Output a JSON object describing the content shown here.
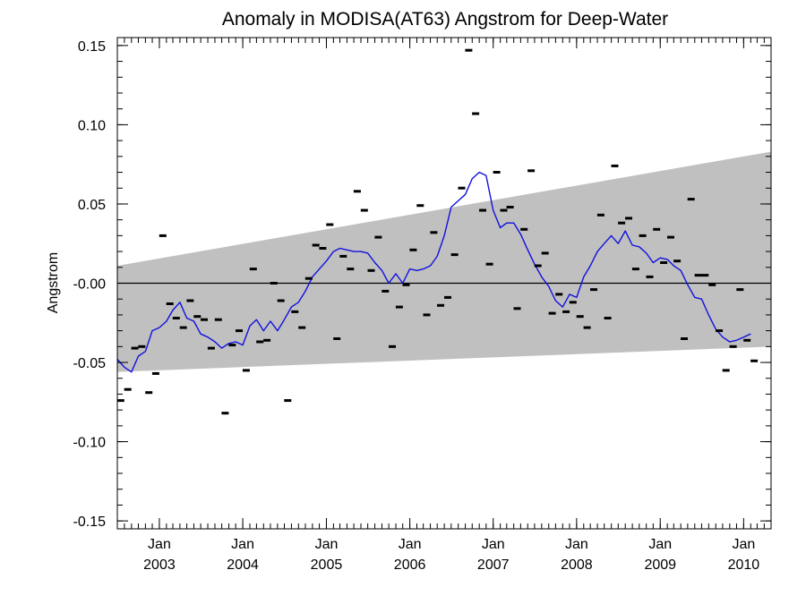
{
  "chart_data": {
    "type": "line",
    "title": "Anomaly in MODISA(AT63) Angstrom for Deep-Water",
    "xlabel": "",
    "ylabel": "Angstrom",
    "x_range": [
      "2002-07-01",
      "2010-05-01"
    ],
    "ylim": [
      -0.155,
      0.155
    ],
    "y_ticks": [
      {
        "value": 0.15,
        "label": "0.15"
      },
      {
        "value": 0.1,
        "label": "0.10"
      },
      {
        "value": 0.05,
        "label": "0.05"
      },
      {
        "value": 0.0,
        "label": "-0.00"
      },
      {
        "value": -0.05,
        "label": "-0.05"
      },
      {
        "value": -0.1,
        "label": "-0.10"
      },
      {
        "value": -0.15,
        "label": "-0.15"
      }
    ],
    "x_ticks": [
      {
        "date": "2003-01-01",
        "month": "Jan",
        "year": "2003"
      },
      {
        "date": "2004-01-01",
        "month": "Jan",
        "year": "2004"
      },
      {
        "date": "2005-01-01",
        "month": "Jan",
        "year": "2005"
      },
      {
        "date": "2006-01-01",
        "month": "Jan",
        "year": "2006"
      },
      {
        "date": "2007-01-01",
        "month": "Jan",
        "year": "2007"
      },
      {
        "date": "2008-01-01",
        "month": "Jan",
        "year": "2008"
      },
      {
        "date": "2009-01-01",
        "month": "Jan",
        "year": "2009"
      },
      {
        "date": "2010-01-01",
        "month": "Jan",
        "year": "2010"
      }
    ],
    "zero_line": 0.0,
    "grid": false,
    "band": {
      "color": "#c0c0c0",
      "upper": [
        [
          "2002-07-01",
          0.011
        ],
        [
          "2010-05-01",
          0.083
        ]
      ],
      "lower": [
        [
          "2002-07-01",
          -0.056
        ],
        [
          "2010-05-01",
          -0.04
        ]
      ]
    },
    "series": [
      {
        "type": "scatter",
        "marker": "dash",
        "color": "#000000",
        "points": [
          [
            "2002-07-16",
            -0.074
          ],
          [
            "2002-08-16",
            -0.067
          ],
          [
            "2002-09-16",
            -0.041
          ],
          [
            "2002-10-16",
            -0.04
          ],
          [
            "2002-11-16",
            -0.069
          ],
          [
            "2002-12-16",
            -0.057
          ],
          [
            "2003-01-16",
            0.03
          ],
          [
            "2003-02-16",
            -0.013
          ],
          [
            "2003-03-16",
            -0.022
          ],
          [
            "2003-04-16",
            -0.028
          ],
          [
            "2003-05-16",
            -0.011
          ],
          [
            "2003-06-16",
            -0.021
          ],
          [
            "2003-07-16",
            -0.023
          ],
          [
            "2003-08-16",
            -0.041
          ],
          [
            "2003-09-16",
            -0.023
          ],
          [
            "2003-10-16",
            -0.082
          ],
          [
            "2003-11-16",
            -0.039
          ],
          [
            "2003-12-16",
            -0.03
          ],
          [
            "2004-01-16",
            -0.055
          ],
          [
            "2004-02-16",
            0.009
          ],
          [
            "2004-03-16",
            -0.037
          ],
          [
            "2004-04-16",
            -0.036
          ],
          [
            "2004-05-16",
            0.0
          ],
          [
            "2004-06-16",
            -0.011
          ],
          [
            "2004-07-16",
            -0.074
          ],
          [
            "2004-08-16",
            -0.018
          ],
          [
            "2004-09-16",
            -0.028
          ],
          [
            "2004-10-16",
            0.003
          ],
          [
            "2004-11-16",
            0.024
          ],
          [
            "2004-12-16",
            0.022
          ],
          [
            "2005-01-16",
            0.037
          ],
          [
            "2005-02-16",
            -0.035
          ],
          [
            "2005-03-16",
            0.017
          ],
          [
            "2005-04-16",
            0.009
          ],
          [
            "2005-05-16",
            0.058
          ],
          [
            "2005-06-16",
            0.046
          ],
          [
            "2005-07-16",
            0.008
          ],
          [
            "2005-08-16",
            0.029
          ],
          [
            "2005-09-16",
            -0.005
          ],
          [
            "2005-10-16",
            -0.04
          ],
          [
            "2005-11-16",
            -0.015
          ],
          [
            "2005-12-16",
            -0.001
          ],
          [
            "2006-01-16",
            0.021
          ],
          [
            "2006-02-16",
            0.049
          ],
          [
            "2006-03-16",
            -0.02
          ],
          [
            "2006-04-16",
            0.032
          ],
          [
            "2006-05-16",
            -0.014
          ],
          [
            "2006-06-16",
            -0.009
          ],
          [
            "2006-07-16",
            0.018
          ],
          [
            "2006-08-16",
            0.06
          ],
          [
            "2006-09-16",
            0.147
          ],
          [
            "2006-10-16",
            0.107
          ],
          [
            "2006-11-16",
            0.046
          ],
          [
            "2006-12-16",
            0.012
          ],
          [
            "2007-01-16",
            0.07
          ],
          [
            "2007-02-16",
            0.046
          ],
          [
            "2007-03-16",
            0.048
          ],
          [
            "2007-04-16",
            -0.016
          ],
          [
            "2007-05-16",
            0.034
          ],
          [
            "2007-06-16",
            0.071
          ],
          [
            "2007-07-16",
            0.011
          ],
          [
            "2007-08-16",
            0.019
          ],
          [
            "2007-09-16",
            -0.019
          ],
          [
            "2007-10-16",
            -0.007
          ],
          [
            "2007-11-16",
            -0.018
          ],
          [
            "2007-12-16",
            -0.012
          ],
          [
            "2008-01-16",
            -0.021
          ],
          [
            "2008-02-16",
            -0.028
          ],
          [
            "2008-03-16",
            -0.004
          ],
          [
            "2008-04-16",
            0.043
          ],
          [
            "2008-05-16",
            -0.022
          ],
          [
            "2008-06-16",
            0.074
          ],
          [
            "2008-07-16",
            0.038
          ],
          [
            "2008-08-16",
            0.041
          ],
          [
            "2008-09-16",
            0.009
          ],
          [
            "2008-10-16",
            0.03
          ],
          [
            "2008-11-16",
            0.004
          ],
          [
            "2008-12-16",
            0.034
          ],
          [
            "2009-01-16",
            0.013
          ],
          [
            "2009-02-16",
            0.029
          ],
          [
            "2009-03-16",
            0.014
          ],
          [
            "2009-04-16",
            -0.035
          ],
          [
            "2009-05-16",
            0.053
          ],
          [
            "2009-06-16",
            0.005
          ],
          [
            "2009-07-16",
            0.005
          ],
          [
            "2009-08-16",
            -0.001
          ],
          [
            "2009-09-16",
            -0.03
          ],
          [
            "2009-10-16",
            -0.055
          ],
          [
            "2009-11-16",
            -0.04
          ],
          [
            "2009-12-16",
            -0.004
          ],
          [
            "2010-01-16",
            -0.036
          ],
          [
            "2010-02-16",
            -0.049
          ]
        ]
      },
      {
        "type": "line",
        "color": "#1010e0",
        "points": [
          [
            "2002-07-01",
            -0.048
          ],
          [
            "2002-08-01",
            -0.053
          ],
          [
            "2002-09-01",
            -0.056
          ],
          [
            "2002-10-01",
            -0.046
          ],
          [
            "2002-11-01",
            -0.043
          ],
          [
            "2002-12-01",
            -0.03
          ],
          [
            "2003-01-01",
            -0.028
          ],
          [
            "2003-02-01",
            -0.024
          ],
          [
            "2003-03-01",
            -0.017
          ],
          [
            "2003-04-01",
            -0.012
          ],
          [
            "2003-05-01",
            -0.022
          ],
          [
            "2003-06-01",
            -0.024
          ],
          [
            "2003-07-01",
            -0.032
          ],
          [
            "2003-08-01",
            -0.034
          ],
          [
            "2003-09-01",
            -0.037
          ],
          [
            "2003-10-01",
            -0.041
          ],
          [
            "2003-11-01",
            -0.038
          ],
          [
            "2003-12-01",
            -0.037
          ],
          [
            "2004-01-01",
            -0.039
          ],
          [
            "2004-02-01",
            -0.027
          ],
          [
            "2004-03-01",
            -0.023
          ],
          [
            "2004-04-01",
            -0.03
          ],
          [
            "2004-05-01",
            -0.024
          ],
          [
            "2004-06-01",
            -0.03
          ],
          [
            "2004-07-01",
            -0.023
          ],
          [
            "2004-08-01",
            -0.015
          ],
          [
            "2004-09-01",
            -0.012
          ],
          [
            "2004-10-01",
            -0.005
          ],
          [
            "2004-11-01",
            0.004
          ],
          [
            "2004-12-01",
            0.009
          ],
          [
            "2005-01-01",
            0.014
          ],
          [
            "2005-02-01",
            0.02
          ],
          [
            "2005-03-01",
            0.022
          ],
          [
            "2005-04-01",
            0.021
          ],
          [
            "2005-05-01",
            0.02
          ],
          [
            "2005-06-01",
            0.02
          ],
          [
            "2005-07-01",
            0.019
          ],
          [
            "2005-08-01",
            0.013
          ],
          [
            "2005-09-01",
            0.008
          ],
          [
            "2005-10-01",
            0.0
          ],
          [
            "2005-11-01",
            0.006
          ],
          [
            "2005-12-01",
            0.0
          ],
          [
            "2006-01-01",
            0.009
          ],
          [
            "2006-02-01",
            0.008
          ],
          [
            "2006-03-01",
            0.009
          ],
          [
            "2006-04-01",
            0.011
          ],
          [
            "2006-05-01",
            0.017
          ],
          [
            "2006-06-01",
            0.03
          ],
          [
            "2006-07-01",
            0.048
          ],
          [
            "2006-08-01",
            0.052
          ],
          [
            "2006-09-01",
            0.056
          ],
          [
            "2006-10-01",
            0.066
          ],
          [
            "2006-11-01",
            0.07
          ],
          [
            "2006-12-01",
            0.068
          ],
          [
            "2007-01-01",
            0.046
          ],
          [
            "2007-02-01",
            0.035
          ],
          [
            "2007-03-01",
            0.038
          ],
          [
            "2007-04-01",
            0.038
          ],
          [
            "2007-05-01",
            0.031
          ],
          [
            "2007-06-01",
            0.021
          ],
          [
            "2007-07-01",
            0.012
          ],
          [
            "2007-08-01",
            0.004
          ],
          [
            "2007-09-01",
            -0.002
          ],
          [
            "2007-10-01",
            -0.011
          ],
          [
            "2007-11-01",
            -0.015
          ],
          [
            "2007-12-01",
            -0.007
          ],
          [
            "2008-01-01",
            -0.009
          ],
          [
            "2008-02-01",
            0.004
          ],
          [
            "2008-03-01",
            0.011
          ],
          [
            "2008-04-01",
            0.02
          ],
          [
            "2008-05-01",
            0.025
          ],
          [
            "2008-06-01",
            0.03
          ],
          [
            "2008-07-01",
            0.025
          ],
          [
            "2008-08-01",
            0.033
          ],
          [
            "2008-09-01",
            0.024
          ],
          [
            "2008-10-01",
            0.023
          ],
          [
            "2008-11-01",
            0.019
          ],
          [
            "2008-12-01",
            0.013
          ],
          [
            "2009-01-01",
            0.016
          ],
          [
            "2009-02-01",
            0.015
          ],
          [
            "2009-03-01",
            0.011
          ],
          [
            "2009-04-01",
            0.008
          ],
          [
            "2009-05-01",
            -0.001
          ],
          [
            "2009-06-01",
            -0.009
          ],
          [
            "2009-07-01",
            -0.01
          ],
          [
            "2009-08-01",
            -0.02
          ],
          [
            "2009-09-01",
            -0.029
          ],
          [
            "2009-10-01",
            -0.034
          ],
          [
            "2009-11-01",
            -0.037
          ],
          [
            "2009-12-01",
            -0.036
          ],
          [
            "2010-01-01",
            -0.034
          ],
          [
            "2010-02-01",
            -0.032
          ]
        ]
      }
    ]
  }
}
